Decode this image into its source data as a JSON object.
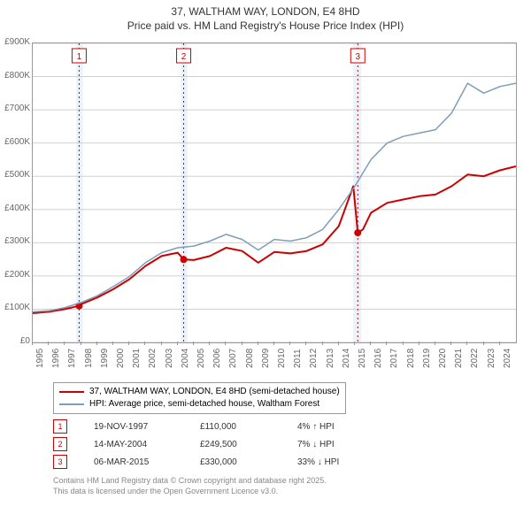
{
  "title": {
    "line1": "37, WALTHAM WAY, LONDON, E4 8HD",
    "line2": "Price paid vs. HM Land Registry's House Price Index (HPI)"
  },
  "chart": {
    "type": "line",
    "background_color": "#ffffff",
    "grid_color": "#d0d0d0",
    "axis_color": "#999999",
    "label_fontsize": 10,
    "label_color": "#666666",
    "xlim": [
      1995,
      2025
    ],
    "ylim": [
      0,
      900
    ],
    "ytick_step": 100,
    "yticks": [
      "£0",
      "£100K",
      "£200K",
      "£300K",
      "£400K",
      "£500K",
      "£600K",
      "£700K",
      "£800K",
      "£900K"
    ],
    "xticks": [
      "1995",
      "1996",
      "1997",
      "1998",
      "1999",
      "2000",
      "2001",
      "2002",
      "2003",
      "2004",
      "2005",
      "2006",
      "2007",
      "2008",
      "2009",
      "2010",
      "2011",
      "2012",
      "2013",
      "2014",
      "2015",
      "2016",
      "2017",
      "2018",
      "2019",
      "2020",
      "2021",
      "2022",
      "2023",
      "2024"
    ],
    "vband_color": "#eaf2fa",
    "vbands": [
      {
        "start": 1997.7,
        "end": 1998.1
      },
      {
        "start": 2004.2,
        "end": 2004.6
      },
      {
        "start": 2014.9,
        "end": 2015.4
      }
    ],
    "series": [
      {
        "name": "price_paid",
        "label": "37, WALTHAM WAY, LONDON, E4 8HD (semi-detached house)",
        "color": "#cc0000",
        "width": 2,
        "points": [
          [
            1995,
            88
          ],
          [
            1996,
            92
          ],
          [
            1997,
            100
          ],
          [
            1997.88,
            110
          ],
          [
            1998,
            115
          ],
          [
            1999,
            135
          ],
          [
            2000,
            160
          ],
          [
            2001,
            190
          ],
          [
            2002,
            230
          ],
          [
            2003,
            260
          ],
          [
            2004,
            270
          ],
          [
            2004.37,
            249.5
          ],
          [
            2005,
            248
          ],
          [
            2006,
            260
          ],
          [
            2007,
            285
          ],
          [
            2008,
            275
          ],
          [
            2009,
            240
          ],
          [
            2010,
            272
          ],
          [
            2011,
            268
          ],
          [
            2012,
            275
          ],
          [
            2013,
            295
          ],
          [
            2014,
            350
          ],
          [
            2014.9,
            470
          ],
          [
            2015.18,
            330
          ],
          [
            2015.5,
            340
          ],
          [
            2016,
            390
          ],
          [
            2017,
            420
          ],
          [
            2018,
            430
          ],
          [
            2019,
            440
          ],
          [
            2020,
            445
          ],
          [
            2021,
            470
          ],
          [
            2022,
            505
          ],
          [
            2023,
            500
          ],
          [
            2024,
            518
          ],
          [
            2025,
            530
          ]
        ],
        "markers": [
          {
            "x": 1997.88,
            "y": 110
          },
          {
            "x": 2004.37,
            "y": 249.5
          },
          {
            "x": 2015.18,
            "y": 330
          }
        ],
        "marker_color": "#cc0000",
        "marker_size": 4
      },
      {
        "name": "hpi",
        "label": "HPI: Average price, semi-detached house, Waltham Forest",
        "color": "#7f9db9",
        "width": 1.5,
        "points": [
          [
            1995,
            92
          ],
          [
            1996,
            95
          ],
          [
            1997,
            105
          ],
          [
            1998,
            120
          ],
          [
            1999,
            140
          ],
          [
            2000,
            168
          ],
          [
            2001,
            198
          ],
          [
            2002,
            240
          ],
          [
            2003,
            270
          ],
          [
            2004,
            285
          ],
          [
            2005,
            290
          ],
          [
            2006,
            305
          ],
          [
            2007,
            325
          ],
          [
            2008,
            310
          ],
          [
            2009,
            278
          ],
          [
            2010,
            310
          ],
          [
            2011,
            305
          ],
          [
            2012,
            315
          ],
          [
            2013,
            340
          ],
          [
            2014,
            400
          ],
          [
            2015,
            470
          ],
          [
            2016,
            550
          ],
          [
            2017,
            600
          ],
          [
            2018,
            620
          ],
          [
            2019,
            630
          ],
          [
            2020,
            640
          ],
          [
            2021,
            690
          ],
          [
            2022,
            780
          ],
          [
            2023,
            750
          ],
          [
            2024,
            770
          ],
          [
            2025,
            780
          ]
        ]
      }
    ],
    "event_markers": [
      {
        "num": "1",
        "x": 1997.88
      },
      {
        "num": "2",
        "x": 2004.37
      },
      {
        "num": "3",
        "x": 2015.18
      }
    ],
    "event_line_color": "#cc0000",
    "event_box_border": "#cc0000",
    "event_box_text": "#cc0000"
  },
  "legend": {
    "items": [
      {
        "color": "#cc0000",
        "width": 2,
        "label": "37, WALTHAM WAY, LONDON, E4 8HD (semi-detached house)"
      },
      {
        "color": "#7f9db9",
        "width": 1.5,
        "label": "HPI: Average price, semi-detached house, Waltham Forest"
      }
    ]
  },
  "transactions": [
    {
      "num": "1",
      "date": "19-NOV-1997",
      "price": "£110,000",
      "hpi": "4% ↑ HPI"
    },
    {
      "num": "2",
      "date": "14-MAY-2004",
      "price": "£249,500",
      "hpi": "7% ↓ HPI"
    },
    {
      "num": "3",
      "date": "06-MAR-2015",
      "price": "£330,000",
      "hpi": "33% ↓ HPI"
    }
  ],
  "credits": {
    "line1": "Contains HM Land Registry data © Crown copyright and database right 2025.",
    "line2": "This data is licensed under the Open Government Licence v3.0."
  }
}
